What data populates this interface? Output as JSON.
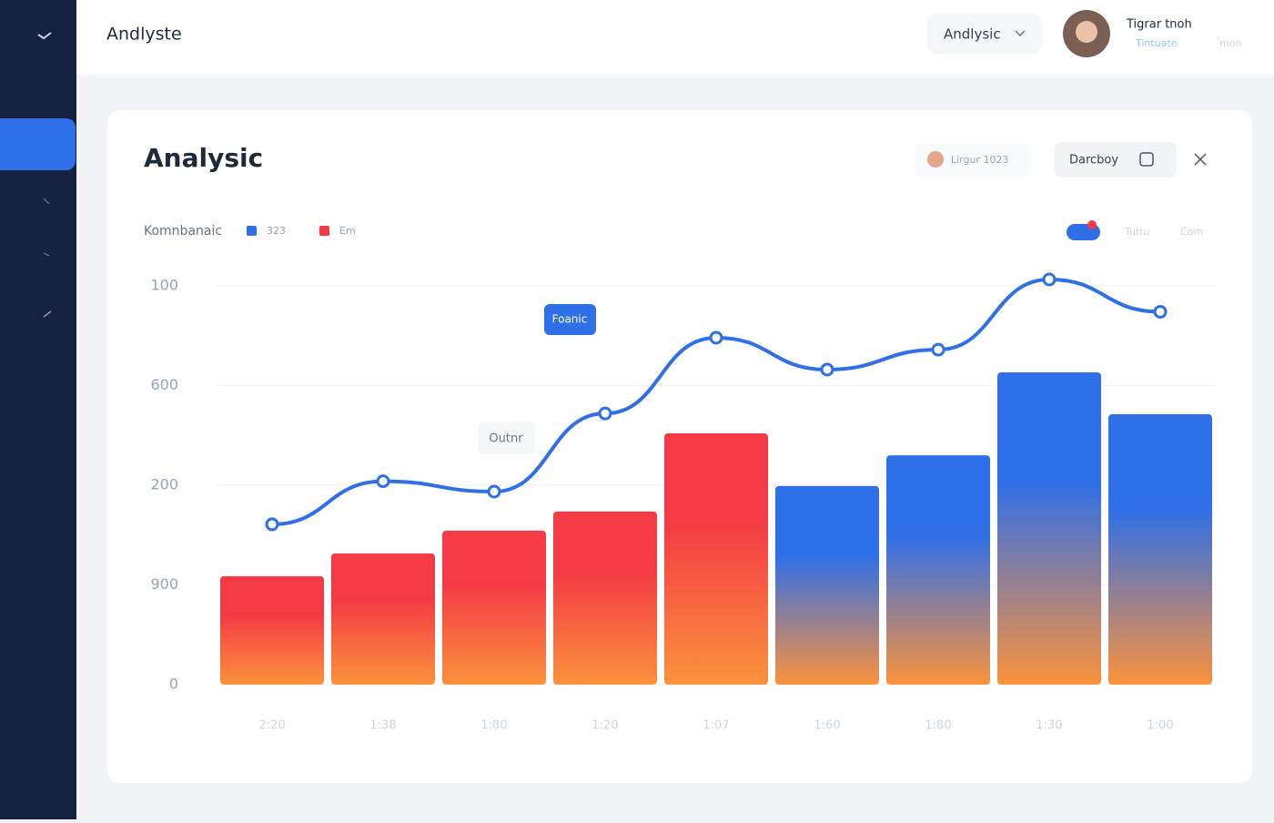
{
  "header": {
    "title": "Andlyste",
    "dropdown": "Andlysic",
    "user_name": "Tigrar tnoh",
    "user_status": "Tintuate",
    "user_extra": "mon"
  },
  "card": {
    "title": "Analysic",
    "chip": "Lirgur 1023",
    "button": "Darcboy",
    "toggle_a": "Tuttu",
    "toggle_b": "Com"
  },
  "chart_data": {
    "type": "bar_line",
    "legend_title": "Komnbanaic",
    "legend": [
      {
        "name": "323",
        "color": "#2f6fe8"
      },
      {
        "name": "Em",
        "color": "#f43a45"
      }
    ],
    "categories": [
      "2:20",
      "1:38",
      "1:80",
      "1:20",
      "1:07",
      "1:60",
      "1:80",
      "1:30",
      "1:00"
    ],
    "bars": {
      "values": [
        27.2,
        32.9,
        38.6,
        43.4,
        63,
        49.8,
        57.5,
        78.3,
        67.8
      ],
      "colors": [
        "#f43a45",
        "#f43a45",
        "#f43a45",
        "#f43a45",
        "#f43a45",
        "#2f6fe8",
        "#2f6fe8",
        "#2f6fe8",
        "#2f6fe8"
      ],
      "gradient_end": "#fb923c"
    },
    "line": {
      "color": "#2f6fe8",
      "values": [
        40.2,
        51,
        48.4,
        68,
        87,
        79,
        84,
        101.6,
        93.5
      ]
    },
    "annotations": [
      "Foanic",
      "Outnr"
    ],
    "ylim": [
      0,
      100
    ],
    "yticks": [
      0,
      {
        "value": 25,
        "label": "900"
      },
      {
        "value": 50,
        "label": "200"
      },
      {
        "value": 75,
        "label": "600"
      },
      100
    ],
    "grid": true
  }
}
